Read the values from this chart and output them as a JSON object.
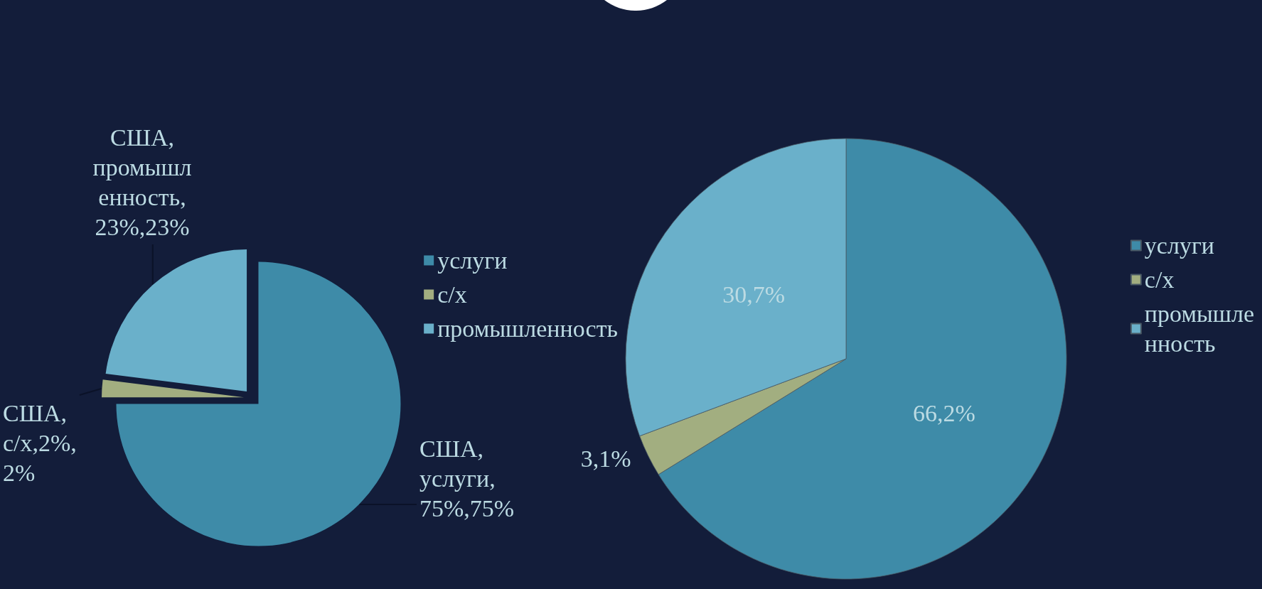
{
  "chart_data": [
    {
      "type": "pie",
      "categories": [
        "услуги",
        "с/х",
        "промышленность"
      ],
      "values": [
        75,
        2,
        23
      ],
      "colors": [
        "#3e8ba8",
        "#a2ae80",
        "#6ab0ca"
      ],
      "value_labels": [
        "США,услуги,75%,75%",
        "США,с/х,2%,2%",
        "США,промышленность,23%,23%"
      ],
      "legend": "right"
    },
    {
      "type": "pie",
      "categories": [
        "услуги",
        "с/х",
        "промышленность"
      ],
      "values": [
        66.2,
        3.1,
        30.7
      ],
      "colors": [
        "#3e8ba8",
        "#a2ae80",
        "#6ab0ca"
      ],
      "value_labels": [
        "66,2%",
        "3,1%",
        "30,7%"
      ],
      "legend": "right"
    }
  ]
}
